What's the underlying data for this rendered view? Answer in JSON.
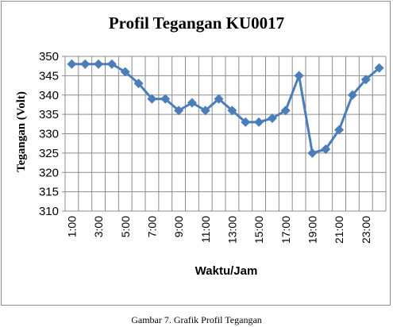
{
  "caption": "Gambar 7. Grafik Profil Tegangan",
  "chart_data": {
    "type": "line",
    "title": "Profil Tegangan KU0017",
    "xlabel": "Waktu/Jam",
    "ylabel": "Tegangan (Volt)",
    "ylim": [
      310,
      350
    ],
    "ytick_step": 5,
    "grid": true,
    "x": [
      "1:00",
      "2:00",
      "3:00",
      "4:00",
      "5:00",
      "6:00",
      "7:00",
      "8:00",
      "9:00",
      "10:00",
      "11:00",
      "12:00",
      "13:00",
      "14:00",
      "15:00",
      "16:00",
      "17:00",
      "18:00",
      "19:00",
      "20:00",
      "21:00",
      "22:00",
      "23:00",
      "24:00"
    ],
    "x_tick_labels": [
      "1:00",
      "3:00",
      "5:00",
      "7:00",
      "9:00",
      "11:00",
      "13:00",
      "15:00",
      "17:00",
      "19:00",
      "21:00",
      "23:00"
    ],
    "series": [
      {
        "color": "#4a7ebb",
        "marker": "diamond",
        "values": [
          348,
          348,
          348,
          348,
          346,
          343,
          339,
          339,
          336,
          338,
          336,
          339,
          336,
          333,
          333,
          334,
          336,
          345,
          325,
          326,
          331,
          340,
          344,
          347
        ]
      }
    ]
  }
}
